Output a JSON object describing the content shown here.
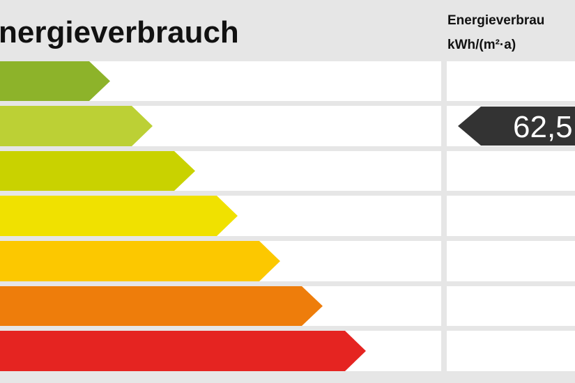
{
  "header": {
    "title": "nergieverbrauch",
    "column_title": "Energieverbrau",
    "unit": "kWh/(m²·a)"
  },
  "indicator": {
    "value_label": "62,5"
  }
}
